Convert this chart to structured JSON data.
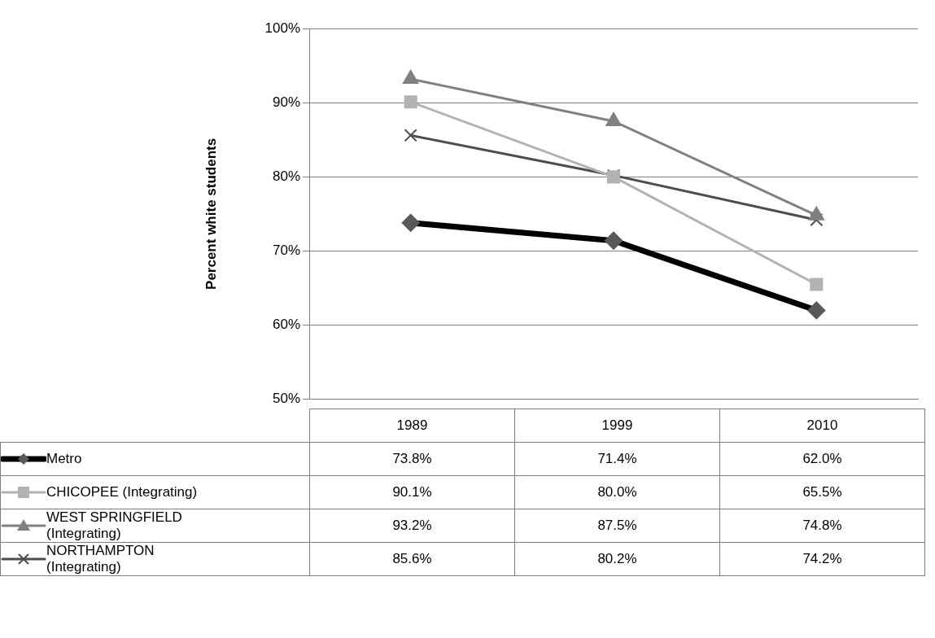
{
  "chart_data": {
    "type": "line",
    "ylabel": "Percent white students",
    "categories": [
      "1989",
      "1999",
      "2010"
    ],
    "ylim": [
      50,
      100
    ],
    "yticks": [
      {
        "value": 50,
        "label": "50%"
      },
      {
        "value": 60,
        "label": "60%"
      },
      {
        "value": 70,
        "label": "70%"
      },
      {
        "value": 80,
        "label": "80%"
      },
      {
        "value": 90,
        "label": "90%"
      },
      {
        "value": 100,
        "label": "100%"
      }
    ],
    "grid": "y",
    "legend": "bottom",
    "series": [
      {
        "name": "Metro",
        "color": "#000000",
        "marker": "diamond",
        "values": [
          73.8,
          71.4,
          62.0
        ],
        "value_labels": [
          "73.8%",
          "71.4%",
          "62.0%"
        ]
      },
      {
        "name": "CHICOPEE (Integrating)",
        "color": "#b2b2b2",
        "marker": "square",
        "values": [
          90.1,
          80.0,
          65.5
        ],
        "value_labels": [
          "90.1%",
          "80.0%",
          "65.5%"
        ]
      },
      {
        "name": "WEST SPRINGFIELD (Integrating)",
        "color": "#808080",
        "marker": "triangle",
        "values": [
          93.2,
          87.5,
          74.8
        ],
        "value_labels": [
          "93.2%",
          "87.5%",
          "74.8%"
        ]
      },
      {
        "name": "NORTHAMPTON (Integrating)",
        "color": "#4d4d4d",
        "marker": "cross",
        "values": [
          85.6,
          80.2,
          74.2
        ],
        "value_labels": [
          "85.6%",
          "80.2%",
          "74.2%"
        ]
      }
    ]
  }
}
